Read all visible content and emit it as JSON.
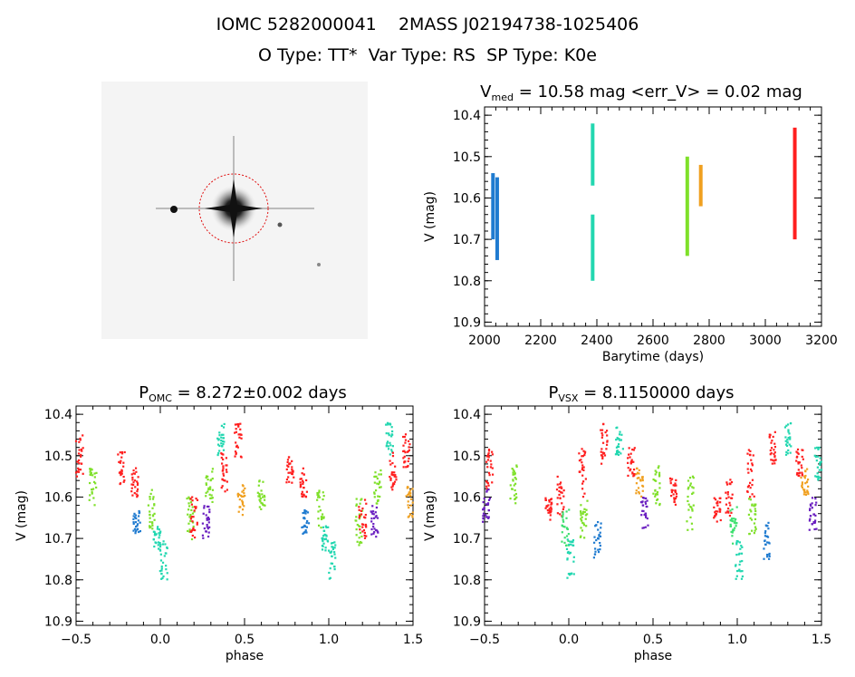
{
  "header": {
    "id_label": "IOMC 5282000041",
    "twomass_label": "2MASS J02194738-1025406",
    "object_type": "O Type: TT*",
    "var_type": "Var Type: RS",
    "sp_type": "SP Type: K0e"
  },
  "image_panel": {
    "top_caption": "",
    "red_label": "",
    "bottom_caption": ""
  },
  "colors": {
    "c1": "#1f7bd0",
    "c2": "#22d7b0",
    "c3": "#7fe02a",
    "c4": "#f0a020",
    "c5": "#ff1f1f",
    "c6": "#6a1fc0",
    "c7": "#3fe070"
  },
  "chart_data": [
    {
      "type": "scatter",
      "title_main": "V",
      "title_sub": "med",
      "title_rest": " = 10.58 mag <err_V> = 0.02 mag",
      "xlabel": "Barytime (days)",
      "ylabel": "V (mag)",
      "xlim": [
        2000,
        3200
      ],
      "ylim": [
        10.91,
        10.38
      ],
      "xticks": [
        "2000",
        "2200",
        "2400",
        "2600",
        "2800",
        "3000",
        "3200"
      ],
      "yticks": [
        "10.4",
        "10.5",
        "10.6",
        "10.7",
        "10.8",
        "10.9"
      ],
      "segments": [
        {
          "color": "#1f7bd0",
          "x": 2030,
          "y": [
            10.54,
            10.7
          ]
        },
        {
          "color": "#1f7bd0",
          "x": 2045,
          "y": [
            10.55,
            10.75
          ]
        },
        {
          "color": "#22d7b0",
          "x": 2385,
          "y": [
            10.42,
            10.57
          ]
        },
        {
          "color": "#22d7b0",
          "x": 2385,
          "y": [
            10.64,
            10.8
          ]
        },
        {
          "color": "#7fe02a",
          "x": 2722,
          "y": [
            10.5,
            10.74
          ]
        },
        {
          "color": "#f0a020",
          "x": 2770,
          "y": [
            10.52,
            10.62
          ]
        },
        {
          "color": "#ff1f1f",
          "x": 3105,
          "y": [
            10.43,
            10.7
          ]
        }
      ]
    },
    {
      "type": "scatter",
      "title_main": "P",
      "title_sub": "OMC",
      "title_rest": " = 8.272±0.002 days",
      "xlabel": "phase",
      "ylabel": "V (mag)",
      "xlim": [
        -0.5,
        1.5
      ],
      "ylim": [
        10.91,
        10.38
      ],
      "xticks": [
        "-0.5",
        "0.0",
        "0.5",
        "1.0",
        "1.5"
      ],
      "yticks": [
        "10.4",
        "10.5",
        "10.6",
        "10.7",
        "10.8",
        "10.9"
      ],
      "clusters": [
        {
          "color": "#ff1f1f",
          "x": -0.48,
          "y": [
            10.45,
            10.55
          ]
        },
        {
          "color": "#7fe02a",
          "x": -0.4,
          "y": [
            10.53,
            10.62
          ]
        },
        {
          "color": "#ff1f1f",
          "x": -0.23,
          "y": [
            10.49,
            10.57
          ]
        },
        {
          "color": "#ff1f1f",
          "x": -0.15,
          "y": [
            10.53,
            10.6
          ]
        },
        {
          "color": "#1f7bd0",
          "x": -0.14,
          "y": [
            10.63,
            10.69
          ]
        },
        {
          "color": "#7fe02a",
          "x": -0.05,
          "y": [
            10.58,
            10.68
          ]
        },
        {
          "color": "#22d7b0",
          "x": -0.02,
          "y": [
            10.67,
            10.73
          ]
        },
        {
          "color": "#22d7b0",
          "x": 0.02,
          "y": [
            10.7,
            10.8
          ]
        },
        {
          "color": "#7fe02a",
          "x": 0.18,
          "y": [
            10.6,
            10.72
          ]
        },
        {
          "color": "#ff1f1f",
          "x": 0.2,
          "y": [
            10.6,
            10.7
          ]
        },
        {
          "color": "#6a1fc0",
          "x": 0.27,
          "y": [
            10.62,
            10.7
          ]
        },
        {
          "color": "#7fe02a",
          "x": 0.29,
          "y": [
            10.53,
            10.62
          ]
        },
        {
          "color": "#22d7b0",
          "x": 0.36,
          "y": [
            10.42,
            10.5
          ]
        },
        {
          "color": "#ff1f1f",
          "x": 0.38,
          "y": [
            10.49,
            10.59
          ]
        },
        {
          "color": "#ff1f1f",
          "x": 0.46,
          "y": [
            10.42,
            10.53
          ]
        },
        {
          "color": "#f0a020",
          "x": 0.48,
          "y": [
            10.57,
            10.65
          ]
        },
        {
          "color": "#7fe02a",
          "x": 0.6,
          "y": [
            10.55,
            10.63
          ]
        },
        {
          "color": "#ff1f1f",
          "x": 0.77,
          "y": [
            10.5,
            10.57
          ]
        },
        {
          "color": "#ff1f1f",
          "x": 0.85,
          "y": [
            10.53,
            10.6
          ]
        },
        {
          "color": "#1f7bd0",
          "x": 0.86,
          "y": [
            10.63,
            10.69
          ]
        },
        {
          "color": "#7fe02a",
          "x": 0.95,
          "y": [
            10.58,
            10.68
          ]
        },
        {
          "color": "#22d7b0",
          "x": 0.98,
          "y": [
            10.67,
            10.73
          ]
        },
        {
          "color": "#22d7b0",
          "x": 1.02,
          "y": [
            10.7,
            10.8
          ]
        },
        {
          "color": "#7fe02a",
          "x": 1.18,
          "y": [
            10.6,
            10.72
          ]
        },
        {
          "color": "#ff1f1f",
          "x": 1.2,
          "y": [
            10.6,
            10.7
          ]
        },
        {
          "color": "#6a1fc0",
          "x": 1.27,
          "y": [
            10.62,
            10.7
          ]
        },
        {
          "color": "#7fe02a",
          "x": 1.29,
          "y": [
            10.53,
            10.62
          ]
        },
        {
          "color": "#22d7b0",
          "x": 1.36,
          "y": [
            10.42,
            10.5
          ]
        },
        {
          "color": "#ff1f1f",
          "x": 1.38,
          "y": [
            10.49,
            10.59
          ]
        },
        {
          "color": "#ff1f1f",
          "x": 1.46,
          "y": [
            10.44,
            10.53
          ]
        },
        {
          "color": "#f0a020",
          "x": 1.48,
          "y": [
            10.57,
            10.65
          ]
        }
      ]
    },
    {
      "type": "scatter",
      "title_main": "P",
      "title_sub": "VSX",
      "title_rest": " = 8.1150000 days",
      "xlabel": "phase",
      "ylabel": "V (mag)",
      "xlim": [
        -0.5,
        1.5
      ],
      "ylim": [
        10.91,
        10.38
      ],
      "xticks": [
        "-0.5",
        "0.0",
        "0.5",
        "1.0",
        "1.5"
      ],
      "yticks": [
        "10.4",
        "10.5",
        "10.6",
        "10.7",
        "10.8",
        "10.9"
      ],
      "clusters": [
        {
          "color": "#ff1f1f",
          "x": -0.47,
          "y": [
            10.48,
            10.58
          ]
        },
        {
          "color": "#6a1fc0",
          "x": -0.49,
          "y": [
            10.58,
            10.66
          ]
        },
        {
          "color": "#7fe02a",
          "x": -0.33,
          "y": [
            10.52,
            10.62
          ]
        },
        {
          "color": "#ff1f1f",
          "x": -0.12,
          "y": [
            10.6,
            10.66
          ]
        },
        {
          "color": "#ff1f1f",
          "x": -0.05,
          "y": [
            10.55,
            10.65
          ]
        },
        {
          "color": "#3fe070",
          "x": -0.02,
          "y": [
            10.62,
            10.72
          ]
        },
        {
          "color": "#22d7b0",
          "x": 0.01,
          "y": [
            10.7,
            10.8
          ]
        },
        {
          "color": "#ff1f1f",
          "x": 0.08,
          "y": [
            10.48,
            10.6
          ]
        },
        {
          "color": "#7fe02a",
          "x": 0.09,
          "y": [
            10.6,
            10.7
          ]
        },
        {
          "color": "#1f7bd0",
          "x": 0.17,
          "y": [
            10.66,
            10.75
          ]
        },
        {
          "color": "#ff1f1f",
          "x": 0.21,
          "y": [
            10.42,
            10.52
          ]
        },
        {
          "color": "#22d7b0",
          "x": 0.3,
          "y": [
            10.42,
            10.5
          ]
        },
        {
          "color": "#ff1f1f",
          "x": 0.37,
          "y": [
            10.48,
            10.55
          ]
        },
        {
          "color": "#f0a020",
          "x": 0.42,
          "y": [
            10.53,
            10.6
          ]
        },
        {
          "color": "#6a1fc0",
          "x": 0.45,
          "y": [
            10.6,
            10.68
          ]
        },
        {
          "color": "#7fe02a",
          "x": 0.52,
          "y": [
            10.52,
            10.62
          ]
        },
        {
          "color": "#ff1f1f",
          "x": 0.62,
          "y": [
            10.55,
            10.62
          ]
        },
        {
          "color": "#7fe02a",
          "x": 0.72,
          "y": [
            10.55,
            10.68
          ]
        },
        {
          "color": "#ff1f1f",
          "x": 0.88,
          "y": [
            10.6,
            10.66
          ]
        },
        {
          "color": "#ff1f1f",
          "x": 0.95,
          "y": [
            10.55,
            10.65
          ]
        },
        {
          "color": "#3fe070",
          "x": 0.98,
          "y": [
            10.62,
            10.72
          ]
        },
        {
          "color": "#22d7b0",
          "x": 1.01,
          "y": [
            10.7,
            10.8
          ]
        },
        {
          "color": "#ff1f1f",
          "x": 1.08,
          "y": [
            10.48,
            10.6
          ]
        },
        {
          "color": "#7fe02a",
          "x": 1.09,
          "y": [
            10.6,
            10.7
          ]
        },
        {
          "color": "#1f7bd0",
          "x": 1.17,
          "y": [
            10.66,
            10.75
          ]
        },
        {
          "color": "#ff1f1f",
          "x": 1.21,
          "y": [
            10.44,
            10.52
          ]
        },
        {
          "color": "#22d7b0",
          "x": 1.3,
          "y": [
            10.42,
            10.5
          ]
        },
        {
          "color": "#ff1f1f",
          "x": 1.37,
          "y": [
            10.48,
            10.55
          ]
        },
        {
          "color": "#f0a020",
          "x": 1.4,
          "y": [
            10.53,
            10.6
          ]
        },
        {
          "color": "#6a1fc0",
          "x": 1.45,
          "y": [
            10.6,
            10.68
          ]
        },
        {
          "color": "#22d7b0",
          "x": 1.48,
          "y": [
            10.48,
            10.56
          ]
        }
      ]
    }
  ]
}
